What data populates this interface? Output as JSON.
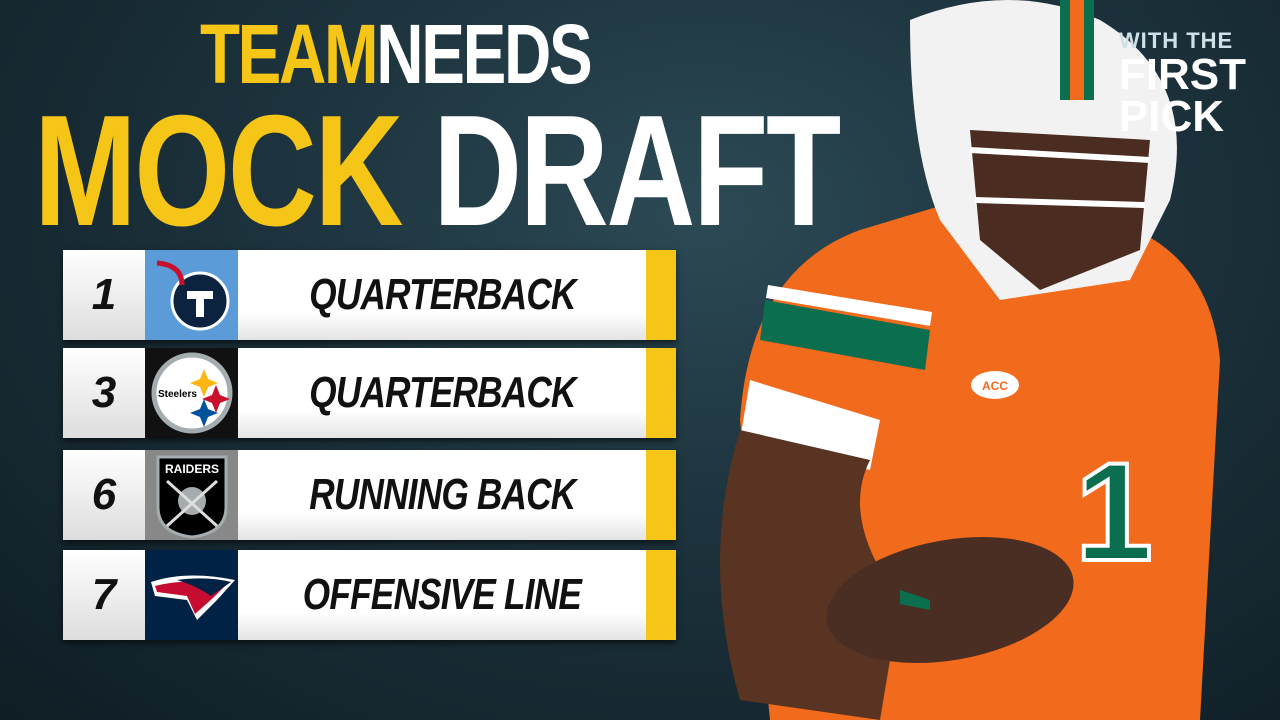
{
  "title": {
    "line1_a": "TEAM",
    "line1_b": "NEEDS",
    "line2_a": "MOCK",
    "line2_b": "DRAFT"
  },
  "brand": {
    "line1": "WITH THE",
    "line2": "FIRST",
    "line3": "PICK"
  },
  "picks": [
    {
      "pick": "1",
      "team_icon": "titans-logo",
      "need": "QUARTERBACK"
    },
    {
      "pick": "3",
      "team_icon": "steelers-logo",
      "need": "QUARTERBACK",
      "logo_text": "Steelers"
    },
    {
      "pick": "6",
      "team_icon": "raiders-logo",
      "need": "RUNNING BACK",
      "logo_text": "RAIDERS"
    },
    {
      "pick": "7",
      "team_icon": "patriots-logo",
      "need": "OFFENSIVE LINE"
    }
  ],
  "colors": {
    "accent": "#f5c518",
    "jersey": "#f26a1b",
    "jersey_green": "#0b6e4f"
  },
  "player": {
    "jersey_number": "1",
    "patch": "ACC"
  }
}
